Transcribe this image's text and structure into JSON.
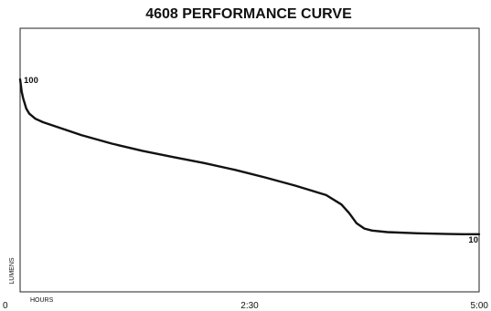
{
  "chart_data": {
    "type": "line",
    "title": "4608 PERFORMANCE CURVE",
    "xlabel": "HOURS",
    "ylabel": "LUMENS",
    "x_ticks": [
      {
        "value": 0,
        "label": "0"
      },
      {
        "value": 150,
        "label": "2:30"
      },
      {
        "value": 300,
        "label": "5:00"
      }
    ],
    "xlim": [
      0,
      300
    ],
    "ylim": [
      0,
      100
    ],
    "grid": false,
    "data_labels": [
      {
        "x": 0,
        "y": 100,
        "text": "100"
      },
      {
        "x": 300,
        "y": 10,
        "text": "10"
      }
    ],
    "series": [
      {
        "x": [
          0,
          1,
          2,
          4,
          6,
          10,
          15,
          25,
          40,
          60,
          80,
          100,
          120,
          140,
          160,
          180,
          200,
          210,
          215,
          220,
          225,
          230,
          240,
          260,
          280,
          290,
          300
        ],
        "y": [
          100,
          93,
          89,
          83,
          80,
          77,
          75,
          72,
          67.5,
          62.5,
          58.3,
          54.7,
          51.2,
          47.3,
          42.8,
          38,
          32.5,
          27,
          22,
          16,
          13,
          11.8,
          10.9,
          10.2,
          9.8,
          9.7,
          9.7
        ]
      }
    ],
    "colors": {
      "line": "#111111",
      "frame": "#222222",
      "text": "#111111"
    }
  }
}
